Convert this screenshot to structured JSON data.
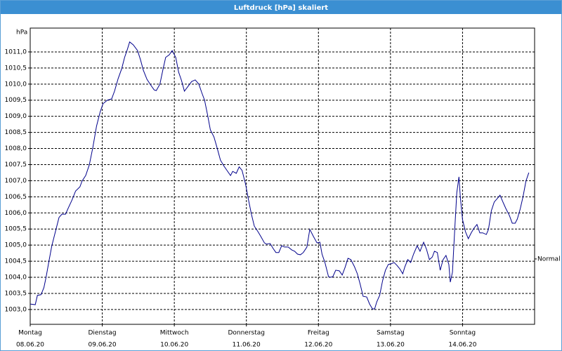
{
  "chart_data": {
    "type": "line",
    "title": "Luftdruck [hPa] skaliert",
    "ylabel": "hPa",
    "xlim": [
      0,
      7
    ],
    "ylim": [
      1002.54,
      1011.74
    ],
    "xticks": [
      {
        "value": 0,
        "label": "Montag"
      },
      {
        "value": 1,
        "label": "Dienstag"
      },
      {
        "value": 2,
        "label": "Mittwoch"
      },
      {
        "value": 3,
        "label": "Donnerstag"
      },
      {
        "value": 4,
        "label": "Freitag"
      },
      {
        "value": 5,
        "label": "Samstag"
      },
      {
        "value": 6,
        "label": "Sonntag"
      }
    ],
    "xtick_dates": [
      "08.06.20",
      "09.06.20",
      "10.06.20",
      "11.06.20",
      "12.06.20",
      "13.06.20",
      "14.06.20"
    ],
    "yticks": [
      {
        "value": 1003,
        "label": "1003,0"
      },
      {
        "value": 1003.5,
        "label": "1003,5"
      },
      {
        "value": 1004,
        "label": "1004,0"
      },
      {
        "value": 1004.5,
        "label": "1004,5"
      },
      {
        "value": 1005,
        "label": "1005,0"
      },
      {
        "value": 1005.5,
        "label": "1005,5"
      },
      {
        "value": 1006,
        "label": "1006,0"
      },
      {
        "value": 1006.5,
        "label": "1006,5"
      },
      {
        "value": 1007,
        "label": "1007,0"
      },
      {
        "value": 1007.5,
        "label": "1007,5"
      },
      {
        "value": 1008,
        "label": "1008,0"
      },
      {
        "value": 1008.5,
        "label": "1008,5"
      },
      {
        "value": 1009,
        "label": "1009,0"
      },
      {
        "value": 1009.5,
        "label": "1009,5"
      },
      {
        "value": 1010,
        "label": "1010,0"
      },
      {
        "value": 1010.5,
        "label": "1010,5"
      },
      {
        "value": 1011,
        "label": "1011,0"
      }
    ],
    "grid": true,
    "reference": {
      "label": "Normal",
      "value": 1004.57
    },
    "color": "#00008b",
    "x": [
      0.0,
      0.07,
      0.1,
      0.15,
      0.19,
      0.22,
      0.26,
      0.3,
      0.35,
      0.4,
      0.44,
      0.49,
      0.53,
      0.58,
      0.63,
      0.69,
      0.72,
      0.77,
      0.82,
      0.87,
      0.92,
      0.97,
      1.01,
      1.07,
      1.13,
      1.17,
      1.22,
      1.27,
      1.31,
      1.35,
      1.38,
      1.43,
      1.49,
      1.53,
      1.57,
      1.62,
      1.67,
      1.72,
      1.75,
      1.8,
      1.84,
      1.88,
      1.93,
      1.97,
      2.02,
      2.06,
      2.1,
      2.14,
      2.19,
      2.24,
      2.29,
      2.34,
      2.38,
      2.42,
      2.46,
      2.5,
      2.55,
      2.6,
      2.64,
      2.69,
      2.74,
      2.78,
      2.81,
      2.86,
      2.9,
      2.94,
      2.99,
      3.03,
      3.07,
      3.11,
      3.16,
      3.2,
      3.25,
      3.28,
      3.33,
      3.37,
      3.41,
      3.45,
      3.49,
      3.53,
      3.58,
      3.63,
      3.67,
      3.71,
      3.75,
      3.79,
      3.84,
      3.88,
      3.93,
      3.98,
      4.02,
      4.05,
      4.09,
      4.14,
      4.17,
      4.2,
      4.24,
      4.29,
      4.33,
      4.37,
      4.41,
      4.45,
      4.5,
      4.54,
      4.58,
      4.62,
      4.67,
      4.71,
      4.75,
      4.78,
      4.81,
      4.85,
      4.89,
      4.93,
      4.97,
      5.01,
      5.05,
      5.09,
      5.13,
      5.17,
      5.2,
      5.24,
      5.28,
      5.32,
      5.37,
      5.41,
      5.46,
      5.5,
      5.54,
      5.58,
      5.61,
      5.65,
      5.69,
      5.73,
      5.77,
      5.81,
      5.83,
      5.86,
      5.89,
      5.92,
      5.95,
      5.97,
      6.0,
      6.04,
      6.08,
      6.12,
      6.16,
      6.2,
      6.24,
      6.28,
      6.33,
      6.36,
      6.4,
      6.44,
      6.48,
      6.52,
      6.56,
      6.6,
      6.65,
      6.69,
      6.73,
      6.76,
      6.8,
      6.84,
      6.88,
      6.92
    ],
    "values": [
      1003.17,
      1003.15,
      1003.44,
      1003.46,
      1003.68,
      1004.0,
      1004.5,
      1004.98,
      1005.42,
      1005.86,
      1005.96,
      1005.96,
      1006.16,
      1006.4,
      1006.68,
      1006.81,
      1006.99,
      1007.16,
      1007.49,
      1008.04,
      1008.69,
      1009.13,
      1009.39,
      1009.5,
      1009.54,
      1009.78,
      1010.17,
      1010.48,
      1010.83,
      1011.09,
      1011.31,
      1011.22,
      1011.04,
      1010.76,
      1010.43,
      1010.15,
      1009.98,
      1009.82,
      1009.8,
      1010.0,
      1010.43,
      1010.83,
      1010.91,
      1011.04,
      1010.83,
      1010.37,
      1010.11,
      1009.78,
      1009.93,
      1010.08,
      1010.13,
      1010.0,
      1009.74,
      1009.5,
      1009.06,
      1008.58,
      1008.36,
      1007.97,
      1007.64,
      1007.45,
      1007.29,
      1007.16,
      1007.29,
      1007.23,
      1007.43,
      1007.32,
      1006.88,
      1006.4,
      1005.96,
      1005.59,
      1005.42,
      1005.27,
      1005.07,
      1005.03,
      1005.05,
      1004.9,
      1004.77,
      1004.77,
      1004.98,
      1004.94,
      1004.94,
      1004.85,
      1004.81,
      1004.72,
      1004.7,
      1004.77,
      1004.94,
      1005.49,
      1005.27,
      1005.07,
      1005.09,
      1004.72,
      1004.46,
      1004.02,
      1004.0,
      1004.02,
      1004.22,
      1004.2,
      1004.07,
      1004.31,
      1004.59,
      1004.55,
      1004.33,
      1004.11,
      1003.78,
      1003.41,
      1003.39,
      1003.17,
      1003.02,
      1003.02,
      1003.24,
      1003.44,
      1003.89,
      1004.22,
      1004.4,
      1004.42,
      1004.46,
      1004.37,
      1004.26,
      1004.11,
      1004.33,
      1004.55,
      1004.46,
      1004.72,
      1004.98,
      1004.81,
      1005.09,
      1004.87,
      1004.55,
      1004.63,
      1004.81,
      1004.77,
      1004.22,
      1004.55,
      1004.68,
      1004.4,
      1003.85,
      1004.16,
      1005.42,
      1006.62,
      1007.12,
      1006.47,
      1005.79,
      1005.42,
      1005.2,
      1005.38,
      1005.53,
      1005.64,
      1005.38,
      1005.38,
      1005.33,
      1005.49,
      1006.07,
      1006.34,
      1006.44,
      1006.55,
      1006.34,
      1006.14,
      1005.92,
      1005.68,
      1005.68,
      1005.81,
      1006.12,
      1006.51,
      1006.99,
      1007.25
    ]
  }
}
